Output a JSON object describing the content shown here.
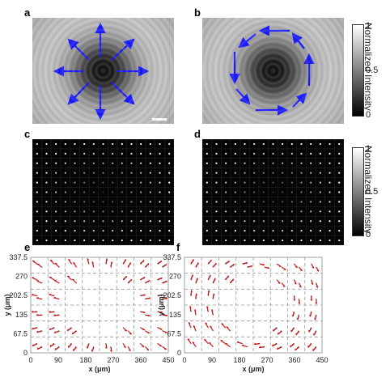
{
  "panels": {
    "a": "a",
    "b": "b",
    "c": "c",
    "d": "d",
    "e": "e",
    "f": "f"
  },
  "colorbar_top": {
    "max_label": "1",
    "mid_label": "0.5",
    "min_label": "0",
    "title": "Normalized  Intensity"
  },
  "colorbar_bottom": {
    "max_label": "1",
    "mid_label": "0.5",
    "min_label": "0",
    "title": "Normalized  Intensity"
  },
  "arrow_color": "#1a1aff",
  "vector_color": "#d01010",
  "chart_data": [
    {
      "type": "scatter",
      "panel": "e",
      "description_of_marks": "radially polarized vector field arrows",
      "xlabel": "x (μm)",
      "ylabel": "y (μm)",
      "xlim": [
        0,
        450
      ],
      "ylim": [
        0,
        337.5
      ],
      "xticks": [
        "0",
        "90",
        "180",
        "270",
        "360",
        "450"
      ],
      "yticks": [
        "0",
        "67.5",
        "135",
        "202.5",
        "270",
        "337.5"
      ],
      "grid": true
    },
    {
      "type": "scatter",
      "panel": "f",
      "description_of_marks": "azimuthally polarized vector field arrows",
      "xlabel": "x (μm)",
      "ylabel": "y (μm)",
      "xlim": [
        0,
        450
      ],
      "ylim": [
        0,
        337.5
      ],
      "xticks": [
        "0",
        "90",
        "180",
        "270",
        "360",
        "450"
      ],
      "yticks": [
        "0",
        "67.5",
        "135",
        "202.5",
        "270",
        "337.5"
      ],
      "grid": true
    }
  ]
}
